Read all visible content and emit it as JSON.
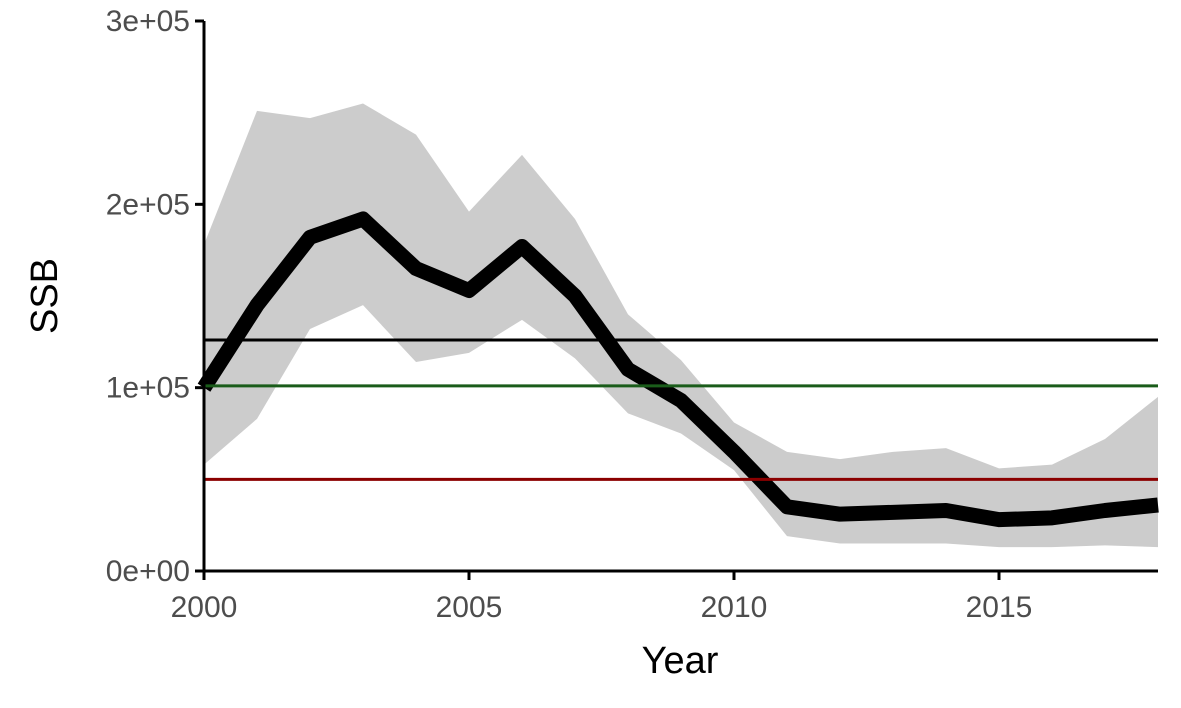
{
  "chart_data": {
    "type": "line",
    "title": "",
    "xlabel": "Year",
    "ylabel": "SSB",
    "xlim": [
      2000,
      2018
    ],
    "ylim": [
      0,
      300000
    ],
    "x_ticks": [
      2000,
      2005,
      2010,
      2015
    ],
    "x_tick_labels": [
      "2000",
      "2005",
      "2010",
      "2015"
    ],
    "y_ticks": [
      0,
      100000,
      200000,
      300000
    ],
    "y_tick_labels": [
      "0e+00",
      "1e+05",
      "2e+05",
      "3e+05"
    ],
    "grid": false,
    "legend": "none",
    "x": [
      2000,
      2001,
      2002,
      2003,
      2004,
      2005,
      2006,
      2007,
      2008,
      2009,
      2010,
      2011,
      2012,
      2013,
      2014,
      2015,
      2016,
      2017,
      2018
    ],
    "series": [
      {
        "values": [
          100000,
          145000,
          182000,
          192000,
          165000,
          153000,
          177000,
          150000,
          110000,
          93000,
          65000,
          35000,
          31000,
          32000,
          33000,
          28000,
          29000,
          33000,
          36000
        ],
        "color": "#000000"
      }
    ],
    "confidence_band": {
      "lower": [
        58000,
        83000,
        132000,
        145000,
        114000,
        119000,
        137000,
        116000,
        86000,
        75000,
        55000,
        19000,
        15000,
        15000,
        15000,
        13000,
        13000,
        14000,
        13000
      ],
      "upper": [
        178000,
        251000,
        247000,
        255000,
        238000,
        196000,
        227000,
        192000,
        140000,
        115000,
        81000,
        65000,
        61000,
        65000,
        67000,
        56000,
        58000,
        72000,
        95000
      ],
      "color": "#cccccc"
    },
    "reference_lines": [
      {
        "value": 126000,
        "color": "#000000"
      },
      {
        "value": 101000,
        "color": "#1a5c1a"
      },
      {
        "value": 50000,
        "color": "#8b0000"
      }
    ]
  }
}
